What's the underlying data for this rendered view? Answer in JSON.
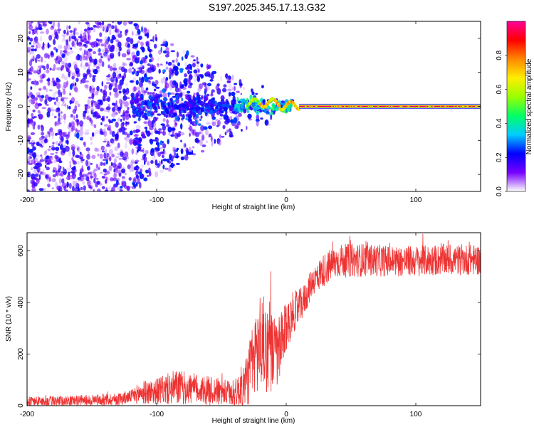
{
  "title": "S197.2025.345.17.13.G32",
  "chart_data": [
    {
      "type": "heatmap",
      "name": "spectrogram",
      "xlabel": "Height of straight line (km)",
      "ylabel": "Frequency (Hz)",
      "xlim": [
        -200,
        150
      ],
      "ylim": [
        -25,
        25
      ],
      "x_ticks": [
        -200,
        -100,
        0,
        100
      ],
      "y_ticks": [
        -20,
        -10,
        0,
        10,
        20
      ],
      "colorbar": {
        "label": "Normalized spectral amplitude",
        "range": [
          0,
          1
        ],
        "ticks": [
          0.0,
          0.2,
          0.4,
          0.6,
          0.8
        ],
        "tick_labels": [
          "0.0",
          "0.2",
          "0.4",
          "0.6",
          "0.8"
        ],
        "colors": [
          "#ffffff",
          "#7700ff",
          "#0000ff",
          "#00ccff",
          "#00ff66",
          "#99ff00",
          "#ffee00",
          "#ff8800",
          "#ff0000",
          "#ff0099"
        ]
      },
      "features": {
        "noise_region_km": [
          -200,
          -20
        ],
        "transition_region_km": [
          -30,
          10
        ],
        "tone_region_km": [
          10,
          150
        ],
        "tone_frequency_hz": 0,
        "tone_amplitude": 0.9
      }
    },
    {
      "type": "line",
      "name": "snr",
      "xlabel": "Height of straight line (km)",
      "ylabel": "SNR (10 * v/v)",
      "xlim": [
        -200,
        150
      ],
      "ylim": [
        0,
        670
      ],
      "x_ticks": [
        -200,
        -100,
        0,
        100
      ],
      "y_ticks": [
        0,
        200,
        400,
        600
      ],
      "color": "#ee3333",
      "envelope": {
        "x": [
          -200,
          -160,
          -130,
          -120,
          -112,
          -100,
          -85,
          -70,
          -55,
          -40,
          -32,
          -25,
          -20,
          -15,
          -10,
          -5,
          0,
          5,
          10,
          15,
          20,
          30,
          40,
          60,
          80,
          100,
          120,
          150
        ],
        "base": [
          15,
          20,
          25,
          35,
          50,
          55,
          70,
          65,
          55,
          45,
          80,
          180,
          250,
          230,
          200,
          210,
          300,
          360,
          380,
          420,
          480,
          530,
          560,
          565,
          560,
          560,
          565,
          565
        ],
        "amp": [
          20,
          20,
          25,
          25,
          45,
          50,
          70,
          60,
          55,
          50,
          100,
          150,
          200,
          180,
          150,
          140,
          100,
          80,
          70,
          60,
          55,
          65,
          65,
          65,
          60,
          60,
          60,
          60
        ]
      }
    }
  ]
}
